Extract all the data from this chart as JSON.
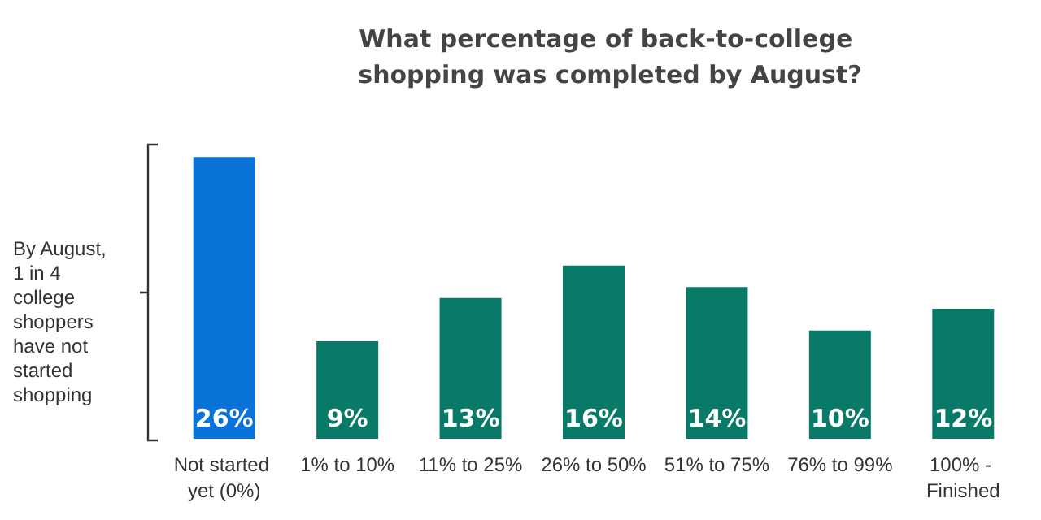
{
  "chart_data": {
    "type": "bar",
    "title": "What percentage of back-to-college shopping was completed by August?",
    "categories": [
      "Not started yet (0%)",
      "1% to 10%",
      "11% to 25%",
      "26% to 50%",
      "51% to 75%",
      "76% to 99%",
      "100% - Finished"
    ],
    "values": [
      26,
      9,
      13,
      16,
      14,
      10,
      12
    ],
    "colors": [
      "#0a73d8",
      "#0a7a68",
      "#0a7a68",
      "#0a7a68",
      "#0a7a68",
      "#0a7a68",
      "#0a7a68"
    ],
    "value_labels": [
      "26%",
      "9%",
      "13%",
      "16%",
      "14%",
      "10%",
      "12%"
    ],
    "annotations": [
      "By August, 1 in 4 college shoppers have not started shopping"
    ]
  }
}
